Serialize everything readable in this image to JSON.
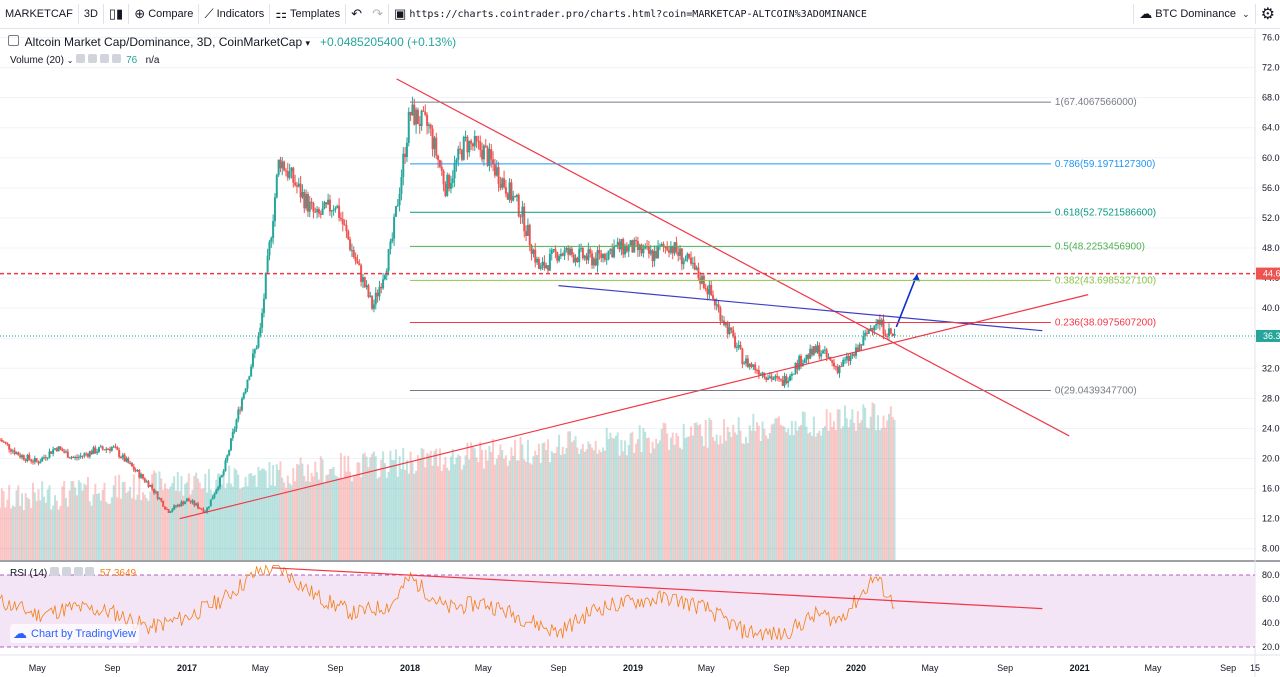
{
  "toolbar": {
    "symbol": "MARKETCAF",
    "interval": "3D",
    "compare": "Compare",
    "indicators": "Indicators",
    "templates": "Templates",
    "url": "https://charts.cointrader.pro/charts.html?coin=MARKETCAP-ALTCOIN%3ADOMINANCE",
    "btc_dominance": "BTC Dominance"
  },
  "legend": {
    "title": "Altcoin Market Cap/Dominance, 3D, CoinMarketCap",
    "change": "+0.0485205400 (+0.13%)",
    "volume_label": "Volume (20)",
    "volume_value": "76",
    "volume_na": "n/a",
    "rsi_label": "RSI (14)",
    "rsi_value": "57.3649"
  },
  "branding": {
    "text": "Chart by TradingView"
  },
  "colors": {
    "up": "#26a69a",
    "down": "#ef5350",
    "fib0": "#787b86",
    "fib236": "#f23645",
    "fib382": "#8bc34a",
    "fib5": "#4caf50",
    "fib618": "#089981",
    "fib786": "#2196f3",
    "price_line": "#ef5350",
    "last_price": "#26a69a",
    "rsi": "#f57f17",
    "rsi_band": "#e1bee7"
  },
  "chart_data": {
    "type": "candlestick",
    "title": "Altcoin Market Cap/Dominance",
    "xlabel": "",
    "ylabel": "",
    "y_axis_ticks": [
      "76.00",
      "72.00",
      "68.00",
      "64.00",
      "60.00",
      "56.00",
      "52.00",
      "48.00",
      "44.00",
      "40.00",
      "36.00",
      "32.00",
      "28.00",
      "24.00",
      "20.00",
      "16.00",
      "12.00",
      "8.00"
    ],
    "x_axis_ticks": [
      "May",
      "Sep",
      "2017",
      "May",
      "Sep",
      "2018",
      "May",
      "Sep",
      "2019",
      "May",
      "Sep",
      "2020",
      "May",
      "Sep",
      "2021",
      "May",
      "Sep",
      "15"
    ],
    "ylim": [
      6.5,
      77
    ],
    "price_path": [
      {
        "date": "2016-03",
        "value": 22.5
      },
      {
        "date": "2016-04",
        "value": 20.5
      },
      {
        "date": "2016-05",
        "value": 19.5
      },
      {
        "date": "2016-06",
        "value": 21.5
      },
      {
        "date": "2016-07",
        "value": 20.0
      },
      {
        "date": "2016-08",
        "value": 21.0
      },
      {
        "date": "2016-09",
        "value": 21.5
      },
      {
        "date": "2016-10",
        "value": 19.0
      },
      {
        "date": "2016-11",
        "value": 16.5
      },
      {
        "date": "2016-12",
        "value": 13.0
      },
      {
        "date": "2017-01",
        "value": 14.5
      },
      {
        "date": "2017-02",
        "value": 13.0
      },
      {
        "date": "2017-03",
        "value": 18.0
      },
      {
        "date": "2017-04",
        "value": 28.0
      },
      {
        "date": "2017-05",
        "value": 37.0
      },
      {
        "date": "2017-06",
        "value": 60.0
      },
      {
        "date": "2017-07",
        "value": 56.0
      },
      {
        "date": "2017-08",
        "value": 52.0
      },
      {
        "date": "2017-09",
        "value": 54.0
      },
      {
        "date": "2017-10",
        "value": 47.0
      },
      {
        "date": "2017-11",
        "value": 40.0
      },
      {
        "date": "2017-12",
        "value": 48.0
      },
      {
        "date": "2018-01",
        "value": 66.0
      },
      {
        "date": "2018-02",
        "value": 64.0
      },
      {
        "date": "2018-03",
        "value": 56.0
      },
      {
        "date": "2018-04",
        "value": 62.0
      },
      {
        "date": "2018-05",
        "value": 61.0
      },
      {
        "date": "2018-06",
        "value": 57.0
      },
      {
        "date": "2018-07",
        "value": 53.0
      },
      {
        "date": "2018-08",
        "value": 45.0
      },
      {
        "date": "2018-09",
        "value": 47.5
      },
      {
        "date": "2018-10",
        "value": 47.0
      },
      {
        "date": "2018-11",
        "value": 46.5
      },
      {
        "date": "2018-12",
        "value": 48.0
      },
      {
        "date": "2019-01",
        "value": 48.0
      },
      {
        "date": "2019-02",
        "value": 47.0
      },
      {
        "date": "2019-03",
        "value": 48.5
      },
      {
        "date": "2019-04",
        "value": 46.0
      },
      {
        "date": "2019-05",
        "value": 43.0
      },
      {
        "date": "2019-06",
        "value": 38.0
      },
      {
        "date": "2019-07",
        "value": 33.0
      },
      {
        "date": "2019-08",
        "value": 31.5
      },
      {
        "date": "2019-09",
        "value": 30.0
      },
      {
        "date": "2019-10",
        "value": 33.0
      },
      {
        "date": "2019-11",
        "value": 34.5
      },
      {
        "date": "2019-12",
        "value": 32.0
      },
      {
        "date": "2020-01",
        "value": 34.0
      },
      {
        "date": "2020-02",
        "value": 38.5
      },
      {
        "date": "2020-03",
        "value": 36.3
      }
    ],
    "last_value": 36.3,
    "horizontal_levels": [
      {
        "value": 44.6,
        "label": "44.6"
      }
    ],
    "fibonacci": [
      {
        "ratio": "1",
        "value": 67.4067566,
        "label": "1(67.4067566000)"
      },
      {
        "ratio": "0.786",
        "value": 59.19711273,
        "label": "0.786(59.1971127300)"
      },
      {
        "ratio": "0.618",
        "value": 52.75215866,
        "label": "0.618(52.7521586600)"
      },
      {
        "ratio": "0.5",
        "value": 48.22534569,
        "label": "0.5(48.2253456900)"
      },
      {
        "ratio": "0.382",
        "value": 43.69853271,
        "label": "0.382(43.6985327100)"
      },
      {
        "ratio": "0.236",
        "value": 38.09756072,
        "label": "0.236(38.0975607200)"
      },
      {
        "ratio": "0",
        "value": 29.04393477,
        "label": "0(29.0439347700)"
      }
    ],
    "price_label_tags": [
      "44.6",
      "36.3"
    ],
    "rsi": {
      "name": "RSI (14)",
      "last": 57.3649,
      "ylim": [
        15,
        90
      ],
      "ticks": [
        "80.00",
        "60.00",
        "40.00",
        "20.00"
      ],
      "band": [
        20,
        80
      ],
      "path": [
        {
          "date": "2016-03",
          "value": 58
        },
        {
          "date": "2016-05",
          "value": 47
        },
        {
          "date": "2016-07",
          "value": 53
        },
        {
          "date": "2016-09",
          "value": 49
        },
        {
          "date": "2016-11",
          "value": 36
        },
        {
          "date": "2017-01",
          "value": 45
        },
        {
          "date": "2017-03",
          "value": 60
        },
        {
          "date": "2017-05",
          "value": 84
        },
        {
          "date": "2017-06",
          "value": 86
        },
        {
          "date": "2017-08",
          "value": 62
        },
        {
          "date": "2017-10",
          "value": 48
        },
        {
          "date": "2017-12",
          "value": 55
        },
        {
          "date": "2018-01",
          "value": 78
        },
        {
          "date": "2018-03",
          "value": 52
        },
        {
          "date": "2018-05",
          "value": 57
        },
        {
          "date": "2018-07",
          "value": 45
        },
        {
          "date": "2018-09",
          "value": 32
        },
        {
          "date": "2018-11",
          "value": 52
        },
        {
          "date": "2019-01",
          "value": 58
        },
        {
          "date": "2019-03",
          "value": 61
        },
        {
          "date": "2019-05",
          "value": 52
        },
        {
          "date": "2019-07",
          "value": 33
        },
        {
          "date": "2019-09",
          "value": 30
        },
        {
          "date": "2019-11",
          "value": 48
        },
        {
          "date": "2019-12",
          "value": 42
        },
        {
          "date": "2020-01",
          "value": 58
        },
        {
          "date": "2020-02",
          "value": 79
        },
        {
          "date": "2020-03",
          "value": 57
        }
      ]
    }
  }
}
